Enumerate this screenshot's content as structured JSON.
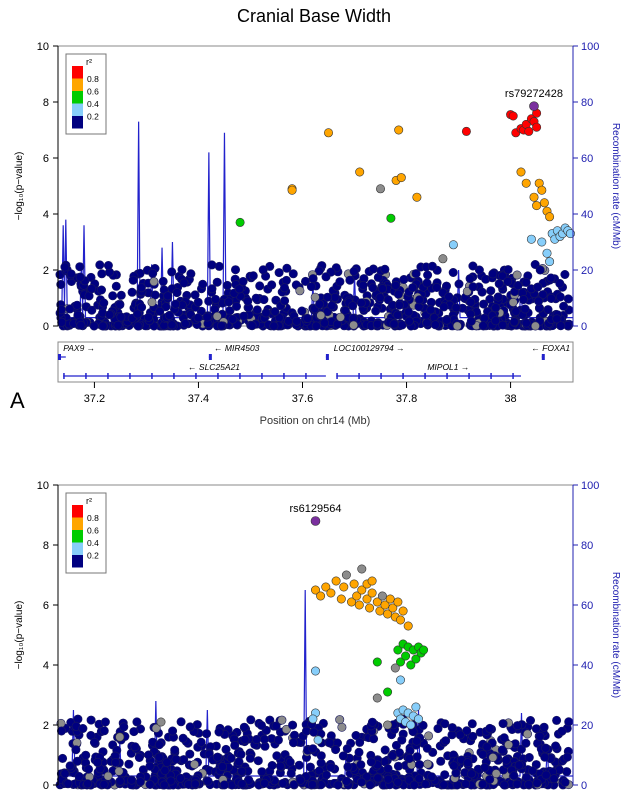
{
  "figure_title": "Cranial Base Width",
  "panel_labels": [
    "A"
  ],
  "colors": {
    "r2_bins": [
      "#000080",
      "#87cefa",
      "#00cc00",
      "#ffa500",
      "#ff0000"
    ],
    "grey": "#8c8c8c",
    "lead_snp": "#7a2f9e",
    "recomb_line": "#2222cc",
    "axis_blue": "#2020b0"
  },
  "legend": {
    "title": "r²",
    "labels": [
      "0.8",
      "0.6",
      "0.4",
      "0.2"
    ]
  },
  "chart_data": [
    {
      "type": "scatter",
      "panel": "A",
      "ylabel": "−log₁₀(p−value)",
      "y2label": "Recombination rate (cM/Mb)",
      "xlabel": "Position on chr14 (Mb)",
      "xlim": [
        37.13,
        38.12
      ],
      "ylim": [
        0,
        10
      ],
      "y2lim": [
        0,
        100
      ],
      "xticks": [
        "37.2",
        "37.4",
        "37.6",
        "37.8",
        "38"
      ],
      "xtick_values": [
        37.2,
        37.4,
        37.6,
        37.8,
        38.0
      ],
      "yticks": [
        "0",
        "2",
        "4",
        "6",
        "8",
        "10"
      ],
      "y2ticks": [
        "0",
        "20",
        "40",
        "60",
        "80",
        "100"
      ],
      "lead_snp": {
        "label": "rs79272428",
        "x": 38.045,
        "y": 7.85
      },
      "snps": [
        {
          "x": 37.48,
          "y": 3.7,
          "r2": 0.5
        },
        {
          "x": 37.58,
          "y": 4.9,
          "r2": 0.7
        },
        {
          "x": 37.58,
          "y": 4.85,
          "r2": 0.7
        },
        {
          "x": 37.65,
          "y": 6.9,
          "r2": 0.7
        },
        {
          "x": 37.71,
          "y": 5.5,
          "r2": 0.7
        },
        {
          "x": 37.75,
          "y": 4.9,
          "r2": null
        },
        {
          "x": 37.77,
          "y": 3.85,
          "r2": 0.5
        },
        {
          "x": 37.78,
          "y": 5.2,
          "r2": 0.7
        },
        {
          "x": 37.785,
          "y": 7.0,
          "r2": 0.7
        },
        {
          "x": 37.79,
          "y": 5.3,
          "r2": 0.7
        },
        {
          "x": 37.82,
          "y": 4.6,
          "r2": 0.7
        },
        {
          "x": 37.87,
          "y": 2.4,
          "r2": null
        },
        {
          "x": 37.89,
          "y": 2.9,
          "r2": 0.3
        },
        {
          "x": 37.915,
          "y": 6.95,
          "r2": 0.9
        },
        {
          "x": 38.0,
          "y": 7.55,
          "r2": 0.9
        },
        {
          "x": 38.005,
          "y": 7.5,
          "r2": 0.9
        },
        {
          "x": 38.01,
          "y": 6.9,
          "r2": 0.9
        },
        {
          "x": 38.02,
          "y": 7.05,
          "r2": 0.9
        },
        {
          "x": 38.025,
          "y": 7.0,
          "r2": 0.9
        },
        {
          "x": 38.03,
          "y": 7.2,
          "r2": 0.9
        },
        {
          "x": 38.035,
          "y": 6.95,
          "r2": 0.9
        },
        {
          "x": 38.04,
          "y": 7.4,
          "r2": 0.9
        },
        {
          "x": 38.045,
          "y": 7.3,
          "r2": 0.9
        },
        {
          "x": 38.05,
          "y": 7.6,
          "r2": 0.9
        },
        {
          "x": 38.05,
          "y": 7.1,
          "r2": 0.9
        },
        {
          "x": 38.02,
          "y": 5.5,
          "r2": 0.7
        },
        {
          "x": 38.03,
          "y": 5.1,
          "r2": 0.7
        },
        {
          "x": 38.055,
          "y": 5.1,
          "r2": 0.7
        },
        {
          "x": 38.06,
          "y": 4.85,
          "r2": 0.7
        },
        {
          "x": 38.065,
          "y": 4.4,
          "r2": 0.7
        },
        {
          "x": 38.07,
          "y": 4.1,
          "r2": 0.7
        },
        {
          "x": 38.075,
          "y": 3.9,
          "r2": 0.7
        },
        {
          "x": 38.045,
          "y": 4.6,
          "r2": 0.7
        },
        {
          "x": 38.05,
          "y": 4.3,
          "r2": 0.7
        },
        {
          "x": 38.04,
          "y": 3.1,
          "r2": 0.3
        },
        {
          "x": 38.06,
          "y": 3.0,
          "r2": 0.3
        },
        {
          "x": 38.07,
          "y": 2.6,
          "r2": 0.3
        },
        {
          "x": 38.075,
          "y": 2.3,
          "r2": 0.3
        },
        {
          "x": 38.08,
          "y": 3.3,
          "r2": 0.3
        },
        {
          "x": 38.085,
          "y": 3.1,
          "r2": 0.3
        },
        {
          "x": 38.09,
          "y": 3.4,
          "r2": 0.3
        },
        {
          "x": 38.095,
          "y": 3.2,
          "r2": 0.3
        },
        {
          "x": 38.1,
          "y": 3.3,
          "r2": 0.3
        },
        {
          "x": 38.105,
          "y": 3.5,
          "r2": 0.3
        },
        {
          "x": 38.11,
          "y": 3.4,
          "r2": 0.3
        },
        {
          "x": 38.115,
          "y": 3.3,
          "r2": 0.3
        }
      ],
      "recomb_peaks": [
        {
          "x": 37.14,
          "y2": 36
        },
        {
          "x": 37.145,
          "y2": 38
        },
        {
          "x": 37.175,
          "y2": 22
        },
        {
          "x": 37.18,
          "y2": 36
        },
        {
          "x": 37.285,
          "y2": 73
        },
        {
          "x": 37.31,
          "y2": 22
        },
        {
          "x": 37.33,
          "y2": 28
        },
        {
          "x": 37.35,
          "y2": 30
        },
        {
          "x": 37.42,
          "y2": 62
        },
        {
          "x": 37.45,
          "y2": 69
        },
        {
          "x": 37.62,
          "y2": 15
        },
        {
          "x": 37.7,
          "y2": 18
        },
        {
          "x": 37.9,
          "y2": 20
        },
        {
          "x": 38.02,
          "y2": 17
        }
      ],
      "genes": [
        {
          "name": "PAX9",
          "x1": 37.13,
          "x2": 37.145,
          "row": 0,
          "dir": "right",
          "labelx": 37.14
        },
        {
          "name": "MIR4503",
          "x1": 37.42,
          "x2": 37.421,
          "row": 0,
          "dir": "left",
          "labelx": 37.43
        },
        {
          "name": "LOC100129794",
          "x1": 37.645,
          "x2": 37.647,
          "row": 0,
          "dir": "right",
          "labelx": 37.66
        },
        {
          "name": "FOXA1",
          "x1": 38.06,
          "x2": 38.065,
          "row": 0,
          "dir": "left",
          "labelx": 38.04
        },
        {
          "name": "SLC25A21",
          "x1": 37.14,
          "x2": 37.645,
          "row": 1,
          "dir": "left",
          "labelx": 37.38
        },
        {
          "name": "MIPOL1",
          "x1": 37.665,
          "x2": 38.02,
          "row": 1,
          "dir": "right",
          "labelx": 37.84
        }
      ]
    },
    {
      "type": "scatter",
      "panel": "B",
      "ylabel": "−log₁₀(p−value)",
      "y2label": "Recombination rate (cM/Mb)",
      "xlim": [
        0,
        1
      ],
      "ylim": [
        0,
        10
      ],
      "y2lim": [
        0,
        100
      ],
      "yticks": [
        "0",
        "2",
        "4",
        "6",
        "8",
        "10"
      ],
      "y2ticks": [
        "0",
        "20",
        "40",
        "60",
        "80",
        "100"
      ],
      "lead_snp": {
        "label": "rs6129564",
        "x": 0.5,
        "y": 8.8
      },
      "snps": [
        {
          "x": 0.5,
          "y": 6.5,
          "r2": 0.7
        },
        {
          "x": 0.51,
          "y": 6.3,
          "r2": 0.7
        },
        {
          "x": 0.52,
          "y": 6.6,
          "r2": 0.7
        },
        {
          "x": 0.53,
          "y": 6.4,
          "r2": 0.7
        },
        {
          "x": 0.54,
          "y": 6.8,
          "r2": 0.7
        },
        {
          "x": 0.55,
          "y": 6.2,
          "r2": 0.7
        },
        {
          "x": 0.555,
          "y": 6.6,
          "r2": 0.7
        },
        {
          "x": 0.56,
          "y": 7.0,
          "r2": null
        },
        {
          "x": 0.57,
          "y": 6.1,
          "r2": 0.7
        },
        {
          "x": 0.575,
          "y": 6.7,
          "r2": 0.7
        },
        {
          "x": 0.58,
          "y": 6.3,
          "r2": 0.7
        },
        {
          "x": 0.585,
          "y": 6.0,
          "r2": 0.7
        },
        {
          "x": 0.59,
          "y": 6.5,
          "r2": 0.7
        },
        {
          "x": 0.6,
          "y": 6.2,
          "r2": 0.7
        },
        {
          "x": 0.605,
          "y": 5.9,
          "r2": 0.7
        },
        {
          "x": 0.61,
          "y": 6.4,
          "r2": 0.7
        },
        {
          "x": 0.62,
          "y": 6.1,
          "r2": 0.7
        },
        {
          "x": 0.625,
          "y": 5.8,
          "r2": 0.7
        },
        {
          "x": 0.63,
          "y": 6.3,
          "r2": null
        },
        {
          "x": 0.635,
          "y": 6.0,
          "r2": 0.7
        },
        {
          "x": 0.64,
          "y": 5.7,
          "r2": 0.7
        },
        {
          "x": 0.645,
          "y": 6.2,
          "r2": 0.7
        },
        {
          "x": 0.65,
          "y": 5.9,
          "r2": 0.7
        },
        {
          "x": 0.655,
          "y": 5.6,
          "r2": 0.7
        },
        {
          "x": 0.66,
          "y": 6.1,
          "r2": 0.7
        },
        {
          "x": 0.665,
          "y": 5.5,
          "r2": 0.7
        },
        {
          "x": 0.67,
          "y": 5.8,
          "r2": 0.7
        },
        {
          "x": 0.68,
          "y": 5.3,
          "r2": 0.7
        },
        {
          "x": 0.59,
          "y": 7.2,
          "r2": null
        },
        {
          "x": 0.6,
          "y": 6.7,
          "r2": 0.7
        },
        {
          "x": 0.61,
          "y": 6.8,
          "r2": 0.7
        },
        {
          "x": 0.66,
          "y": 4.5,
          "r2": 0.5
        },
        {
          "x": 0.665,
          "y": 4.1,
          "r2": 0.5
        },
        {
          "x": 0.67,
          "y": 4.7,
          "r2": 0.5
        },
        {
          "x": 0.675,
          "y": 4.3,
          "r2": 0.5
        },
        {
          "x": 0.68,
          "y": 4.6,
          "r2": 0.5
        },
        {
          "x": 0.685,
          "y": 4.0,
          "r2": 0.5
        },
        {
          "x": 0.69,
          "y": 4.5,
          "r2": 0.5
        },
        {
          "x": 0.695,
          "y": 4.2,
          "r2": 0.5
        },
        {
          "x": 0.7,
          "y": 4.6,
          "r2": 0.5
        },
        {
          "x": 0.705,
          "y": 4.4,
          "r2": 0.5
        },
        {
          "x": 0.71,
          "y": 4.5,
          "r2": 0.5
        },
        {
          "x": 0.62,
          "y": 4.1,
          "r2": 0.5
        },
        {
          "x": 0.64,
          "y": 3.1,
          "r2": 0.5
        },
        {
          "x": 0.655,
          "y": 3.9,
          "r2": null
        },
        {
          "x": 0.665,
          "y": 3.5,
          "r2": 0.3
        },
        {
          "x": 0.66,
          "y": 2.4,
          "r2": 0.3
        },
        {
          "x": 0.665,
          "y": 2.2,
          "r2": 0.3
        },
        {
          "x": 0.67,
          "y": 2.5,
          "r2": 0.3
        },
        {
          "x": 0.675,
          "y": 2.1,
          "r2": 0.3
        },
        {
          "x": 0.68,
          "y": 2.4,
          "r2": 0.3
        },
        {
          "x": 0.685,
          "y": 2.0,
          "r2": 0.3
        },
        {
          "x": 0.69,
          "y": 2.3,
          "r2": 0.3
        },
        {
          "x": 0.695,
          "y": 2.6,
          "r2": 0.3
        },
        {
          "x": 0.7,
          "y": 2.2,
          "r2": 0.3
        },
        {
          "x": 0.5,
          "y": 3.8,
          "r2": 0.3
        },
        {
          "x": 0.5,
          "y": 2.4,
          "r2": 0.3
        },
        {
          "x": 0.495,
          "y": 2.2,
          "r2": 0.3
        },
        {
          "x": 0.505,
          "y": 1.5,
          "r2": 0.3
        },
        {
          "x": 0.62,
          "y": 2.9,
          "r2": null
        },
        {
          "x": 0.64,
          "y": 2.0,
          "r2": null
        },
        {
          "x": 0.2,
          "y": 2.1,
          "r2": null
        },
        {
          "x": 0.12,
          "y": 1.6,
          "r2": null
        }
      ],
      "recomb_peaks": [
        {
          "x": 0.03,
          "y2": 25
        },
        {
          "x": 0.12,
          "y2": 14
        },
        {
          "x": 0.19,
          "y2": 28
        },
        {
          "x": 0.29,
          "y2": 25
        },
        {
          "x": 0.48,
          "y2": 65
        },
        {
          "x": 0.56,
          "y2": 12
        },
        {
          "x": 0.7,
          "y2": 25
        },
        {
          "x": 0.9,
          "y2": 24
        },
        {
          "x": 0.95,
          "y2": 12
        }
      ]
    }
  ]
}
